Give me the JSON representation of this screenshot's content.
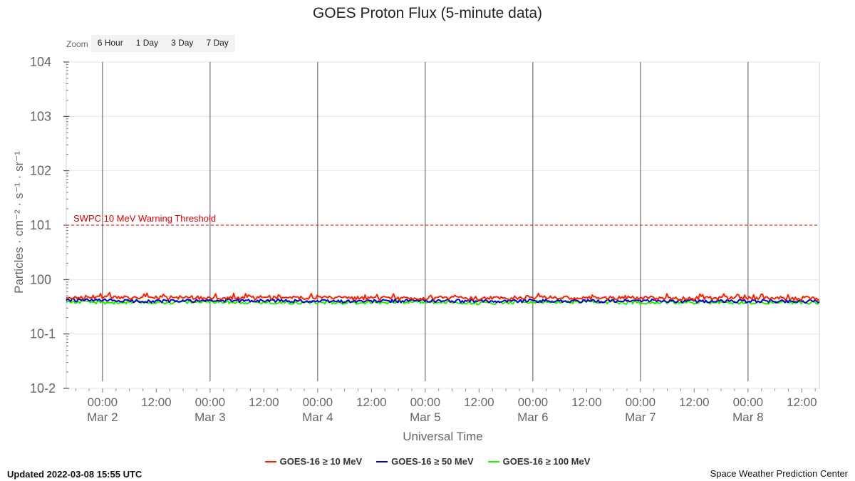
{
  "chart_data": {
    "type": "line",
    "title": "GOES Proton Flux (5-minute data)",
    "ylabel": "Particles · cm⁻² · s⁻¹ · sr⁻¹",
    "xlabel": "Universal Time",
    "yscale": "log",
    "ylim": [
      0.01,
      10000
    ],
    "y_ticks": [
      {
        "value": 10000,
        "base": "10",
        "exp": "4"
      },
      {
        "value": 1000,
        "base": "10",
        "exp": "3"
      },
      {
        "value": 100,
        "base": "10",
        "exp": "2"
      },
      {
        "value": 10,
        "base": "10",
        "exp": "1"
      },
      {
        "value": 1,
        "base": "10",
        "exp": "0"
      },
      {
        "value": 0.1,
        "base": "10",
        "exp": "-1"
      },
      {
        "value": 0.01,
        "base": "10",
        "exp": "-2"
      }
    ],
    "x_range": [
      "2022-03-01 15:55",
      "2022-03-08 15:55"
    ],
    "x_ticks": [
      {
        "time": "2022-03-02 00:00",
        "line1": "00:00",
        "line2": "Mar 2"
      },
      {
        "time": "2022-03-02 12:00",
        "line1": "12:00",
        "line2": ""
      },
      {
        "time": "2022-03-03 00:00",
        "line1": "00:00",
        "line2": "Mar 3"
      },
      {
        "time": "2022-03-03 12:00",
        "line1": "12:00",
        "line2": ""
      },
      {
        "time": "2022-03-04 00:00",
        "line1": "00:00",
        "line2": "Mar 4"
      },
      {
        "time": "2022-03-04 12:00",
        "line1": "12:00",
        "line2": ""
      },
      {
        "time": "2022-03-05 00:00",
        "line1": "00:00",
        "line2": "Mar 5"
      },
      {
        "time": "2022-03-05 12:00",
        "line1": "12:00",
        "line2": ""
      },
      {
        "time": "2022-03-06 00:00",
        "line1": "00:00",
        "line2": "Mar 6"
      },
      {
        "time": "2022-03-06 12:00",
        "line1": "12:00",
        "line2": ""
      },
      {
        "time": "2022-03-07 00:00",
        "line1": "00:00",
        "line2": "Mar 7"
      },
      {
        "time": "2022-03-07 12:00",
        "line1": "12:00",
        "line2": ""
      },
      {
        "time": "2022-03-08 00:00",
        "line1": "00:00",
        "line2": "Mar 8"
      },
      {
        "time": "2022-03-08 12:00",
        "line1": "12:00",
        "line2": ""
      }
    ],
    "threshold": {
      "value": 10,
      "label": "SWPC 10 MeV Warning Threshold",
      "color": "#dd0000"
    },
    "series": [
      {
        "name": "GOES-16 ≥ 10 MeV",
        "color": "#ff2200",
        "x": [
          "2022-03-01 15:55",
          "2022-03-02 00:00",
          "2022-03-02 12:00",
          "2022-03-03 00:00",
          "2022-03-03 12:00",
          "2022-03-04 00:00",
          "2022-03-04 12:00",
          "2022-03-05 00:00",
          "2022-03-05 12:00",
          "2022-03-06 00:00",
          "2022-03-06 12:00",
          "2022-03-07 00:00",
          "2022-03-07 12:00",
          "2022-03-08 00:00",
          "2022-03-08 15:55"
        ],
        "values": [
          0.47,
          0.48,
          0.46,
          0.47,
          0.46,
          0.46,
          0.45,
          0.46,
          0.45,
          0.47,
          0.46,
          0.46,
          0.45,
          0.46,
          0.45
        ]
      },
      {
        "name": "GOES-16 ≥ 50 MeV",
        "color": "#0000cc",
        "x": [
          "2022-03-01 15:55",
          "2022-03-02 00:00",
          "2022-03-02 12:00",
          "2022-03-03 00:00",
          "2022-03-03 12:00",
          "2022-03-04 00:00",
          "2022-03-04 12:00",
          "2022-03-05 00:00",
          "2022-03-05 12:00",
          "2022-03-06 00:00",
          "2022-03-06 12:00",
          "2022-03-07 00:00",
          "2022-03-07 12:00",
          "2022-03-08 00:00",
          "2022-03-08 15:55"
        ],
        "values": [
          0.42,
          0.41,
          0.4,
          0.41,
          0.41,
          0.4,
          0.4,
          0.41,
          0.4,
          0.41,
          0.4,
          0.41,
          0.4,
          0.4,
          0.4
        ]
      },
      {
        "name": "GOES-16 ≥ 100 MeV",
        "color": "#22ee00",
        "x": [
          "2022-03-01 15:55",
          "2022-03-02 00:00",
          "2022-03-02 12:00",
          "2022-03-03 00:00",
          "2022-03-03 12:00",
          "2022-03-04 00:00",
          "2022-03-04 12:00",
          "2022-03-05 00:00",
          "2022-03-05 12:00",
          "2022-03-06 00:00",
          "2022-03-06 12:00",
          "2022-03-07 00:00",
          "2022-03-07 12:00",
          "2022-03-08 00:00",
          "2022-03-08 15:55"
        ],
        "values": [
          0.39,
          0.38,
          0.38,
          0.39,
          0.38,
          0.38,
          0.38,
          0.39,
          0.37,
          0.39,
          0.38,
          0.38,
          0.38,
          0.38,
          0.38
        ]
      }
    ],
    "grid": true,
    "legend": "bottom"
  },
  "zoom": {
    "label": "Zoom",
    "buttons": [
      "6 Hour",
      "1 Day",
      "3 Day",
      "7 Day"
    ]
  },
  "footer": {
    "updated": "Updated 2022-03-08 15:55 UTC",
    "credit": "Space Weather Prediction Center"
  }
}
